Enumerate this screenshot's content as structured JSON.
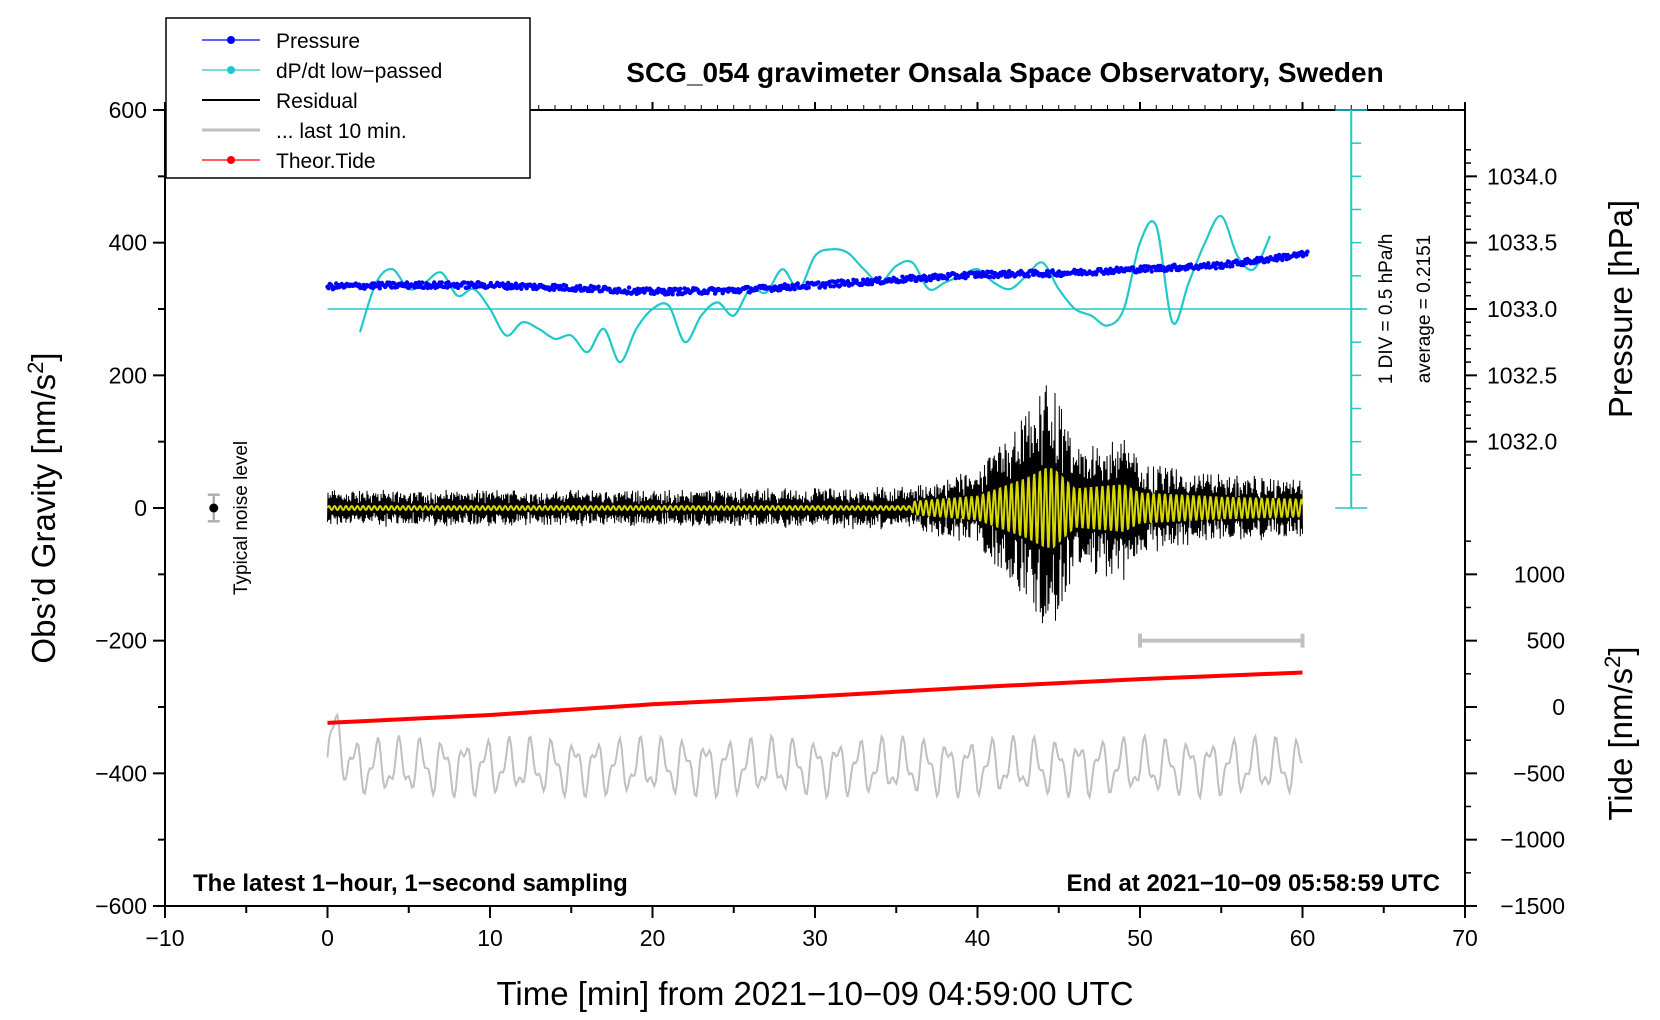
{
  "chart_data": {
    "type": "line",
    "title": "SCG_054 gravimeter Onsala Space Observatory, Sweden",
    "xlabel": "Time [min] from 2021−10−09 04:59:00 UTC",
    "xlim": [
      -10,
      70
    ],
    "x_ticks": [
      -10,
      0,
      10,
      20,
      30,
      40,
      50,
      60,
      70
    ],
    "x_tick_labels": [
      "−10",
      "0",
      "10",
      "20",
      "30",
      "40",
      "50",
      "60",
      "70"
    ],
    "left_axis": {
      "label_main": "Obs’d Gravity [nm/s",
      "label_sup": "2",
      "label_end": "]",
      "ylim": [
        -600,
        600
      ],
      "ticks": [
        600,
        400,
        200,
        0,
        -200,
        -400,
        -600
      ],
      "tick_labels": [
        "600",
        "400",
        "200",
        "0",
        "−200",
        "−400",
        "−600"
      ]
    },
    "pressure_axis": {
      "label": "Pressure [hPa]",
      "ticks": [
        1034.0,
        1033.5,
        1033.0,
        1032.5,
        1032.0
      ],
      "tick_labels": [
        "1034.0",
        "1033.5",
        "1033.0",
        "1032.5",
        "1032.0"
      ],
      "gravity_per_hPa": 200,
      "reference_hPa": 1033.0,
      "reference_gravity": 300
    },
    "tide_axis": {
      "label_main": "Tide [nm/s",
      "label_sup": "2",
      "label_end": "]",
      "ticks": [
        1000,
        500,
        0,
        -500,
        -1000,
        -1500
      ],
      "tick_labels": [
        "1000",
        "500",
        "0",
        "−500",
        "−1000",
        "−1500"
      ],
      "gravity_per_unit": 0.2,
      "offset_gravity": -300
    },
    "dpdt_scale": {
      "label_div": "1 DIV = 0.5 hPa/h",
      "label_avg": "average = 0.2151",
      "x_position": 63,
      "y_range": [
        0,
        600
      ],
      "division": 50,
      "baseline_gravity": 300
    },
    "noise_level": {
      "label": "Typical noise level",
      "x": -7,
      "value": 0,
      "error": 20
    },
    "last_10_min_marker": {
      "x_start": 50,
      "x_end": 60,
      "y": -200
    },
    "notes": {
      "left": "The latest 1−hour, 1−second sampling",
      "right": "End at 2021−10−09 05:58:59 UTC"
    },
    "series": [
      {
        "name": "Pressure",
        "color": "#0000ff",
        "marker": "dot",
        "description": "pressure in hPa, scatter with slight noise",
        "x": [
          0,
          5,
          10,
          15,
          20,
          25,
          30,
          35,
          40,
          45,
          50,
          55,
          60
        ],
        "y_hPa": [
          1033.17,
          1033.18,
          1033.18,
          1033.16,
          1033.13,
          1033.14,
          1033.18,
          1033.22,
          1033.26,
          1033.27,
          1033.3,
          1033.33,
          1033.41
        ]
      },
      {
        "name": "dP/dt low−passed",
        "color": "#20c8c8",
        "marker": "dot",
        "x": [
          2,
          3,
          4,
          5,
          6,
          7,
          8,
          9,
          10,
          11,
          12,
          13,
          14,
          15,
          16,
          17,
          18,
          19,
          20,
          21,
          22,
          23,
          24,
          25,
          26,
          27,
          28,
          29,
          30,
          31,
          32,
          33,
          34,
          35,
          36,
          37,
          38,
          39,
          40,
          41,
          42,
          43,
          44,
          45,
          46,
          47,
          48,
          49,
          50,
          51,
          52,
          53,
          54,
          55,
          56,
          57,
          58
        ],
        "y": [
          265,
          340,
          360,
          330,
          340,
          355,
          320,
          330,
          300,
          260,
          280,
          270,
          255,
          260,
          235,
          270,
          220,
          270,
          300,
          305,
          250,
          290,
          310,
          290,
          330,
          325,
          360,
          330,
          380,
          390,
          385,
          360,
          340,
          365,
          370,
          330,
          340,
          350,
          360,
          340,
          330,
          350,
          370,
          330,
          300,
          290,
          275,
          300,
          400,
          425,
          280,
          340,
          400,
          440,
          380,
          360,
          410
        ]
      },
      {
        "name": "Residual",
        "color": "#000000",
        "description": "residual gravity, quiet ~±25 before 36 min, large wave train peaking ~±200 at 44–45 min",
        "x": [
          0,
          10,
          20,
          30,
          36,
          40,
          43,
          44.5,
          46,
          49,
          50,
          55,
          60
        ],
        "envelope": [
          25,
          25,
          25,
          28,
          30,
          55,
          140,
          200,
          90,
          110,
          70,
          50,
          40
        ]
      },
      {
        "name": "... last 10 min.",
        "color": "#c0c0c0",
        "description": "last 10 minutes of residual, drawn offset around −390",
        "x": [
          0,
          60
        ],
        "center": -390,
        "amplitude": 45
      },
      {
        "name": "Theor.Tide",
        "color": "#ff0000",
        "marker": "dot",
        "x": [
          0,
          10,
          20,
          30,
          40,
          50,
          60
        ],
        "y_tide": [
          -120,
          -60,
          20,
          80,
          150,
          210,
          260
        ]
      }
    ],
    "legend": {
      "position": "top-left",
      "entries": [
        "Pressure",
        "dP/dt low−passed",
        "Residual",
        "... last 10 min.",
        "Theor.Tide"
      ]
    }
  }
}
